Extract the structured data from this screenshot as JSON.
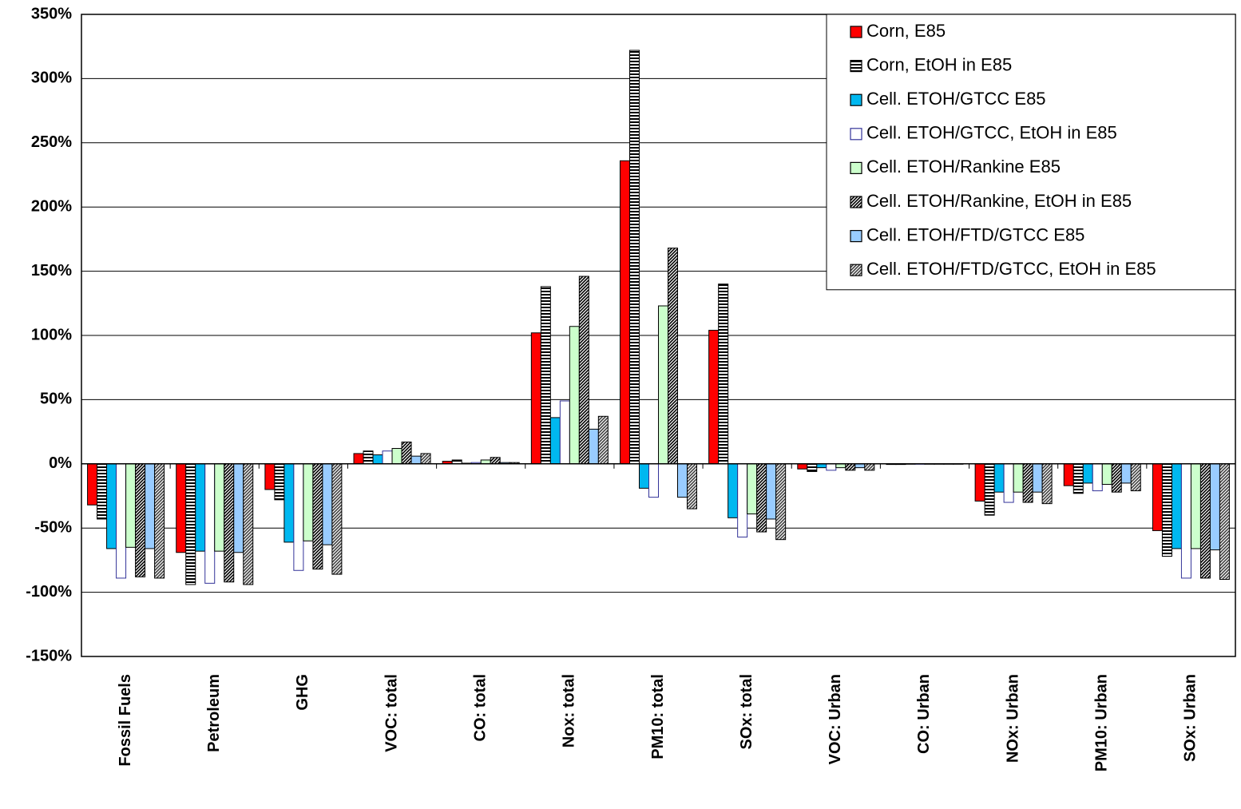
{
  "chart_data": {
    "type": "bar",
    "categories": [
      "Fossil Fuels",
      "Petroleum",
      "GHG",
      "VOC: total",
      "CO: total",
      "Nox: total",
      "PM10: total",
      "SOx: total",
      "VOC: Urban",
      "CO: Urban",
      "NOx: Urban",
      "PM10: Urban",
      "SOx: Urban"
    ],
    "series": [
      {
        "name": "Corn, E85",
        "color": "#ff0000",
        "values": [
          -32,
          -69,
          -20,
          8,
          2,
          102,
          236,
          104,
          -4,
          -0.5,
          -29,
          -17,
          -52
        ]
      },
      {
        "name": "Corn, EtOH in E85",
        "color": "#000000",
        "pattern": "horizontal",
        "values": [
          -43,
          -94,
          -28,
          10,
          3,
          138,
          322,
          140,
          -6,
          -0.5,
          -40,
          -23,
          -72
        ]
      },
      {
        "name": "Cell. ETOH/GTCC E85",
        "color": "#00b8f0",
        "values": [
          -66,
          -68,
          -61,
          7,
          0.5,
          36,
          -19,
          -42,
          -3,
          -0.3,
          -22,
          -15,
          -66
        ]
      },
      {
        "name": "Cell. ETOH/GTCC, EtOH in E85",
        "color": "#ffffff",
        "edgecolor": "#333399",
        "values": [
          -89,
          -93,
          -83,
          10,
          1,
          49,
          -26,
          -57,
          -5,
          -0.3,
          -30,
          -21,
          -89
        ]
      },
      {
        "name": "Cell. ETOH/Rankine E85",
        "color": "#ccffcc",
        "values": [
          -65,
          -68,
          -60,
          12,
          3,
          107,
          123,
          -39,
          -3,
          -0.3,
          -22,
          -16,
          -66
        ]
      },
      {
        "name": "Cell. ETOH/Rankine, EtOH in E85",
        "color": "#000000",
        "pattern": "diagonal",
        "values": [
          -88,
          -92,
          -82,
          17,
          5,
          146,
          168,
          -53,
          -5,
          -0.3,
          -30,
          -22,
          -89
        ]
      },
      {
        "name": "Cell. ETOH/FTD/GTCC E85",
        "color": "#99ccff",
        "values": [
          -66,
          -69,
          -63,
          6,
          1,
          27,
          -26,
          -43,
          -3,
          -0.3,
          -22,
          -15,
          -67
        ]
      },
      {
        "name": "Cell. ETOH/FTD/GTCC, EtOH in E85",
        "color": "#404040",
        "pattern": "diagonal",
        "values": [
          -89,
          -94,
          -86,
          8,
          1,
          37,
          -35,
          -59,
          -5,
          -0.3,
          -31,
          -21,
          -90
        ]
      }
    ],
    "ylim": [
      -150,
      350
    ],
    "yticks": [
      {
        "value": -150,
        "label": "-150%"
      },
      {
        "value": -100,
        "label": "-100%"
      },
      {
        "value": -50,
        "label": "-50%"
      },
      {
        "value": 0,
        "label": "0%"
      },
      {
        "value": 50,
        "label": "50%"
      },
      {
        "value": 100,
        "label": "100%"
      },
      {
        "value": 150,
        "label": "150%"
      },
      {
        "value": 200,
        "label": "200%"
      },
      {
        "value": 250,
        "label": "250%"
      },
      {
        "value": 300,
        "label": "300%"
      },
      {
        "value": 350,
        "label": "350%"
      }
    ],
    "grid": true,
    "legend": "upper right"
  }
}
